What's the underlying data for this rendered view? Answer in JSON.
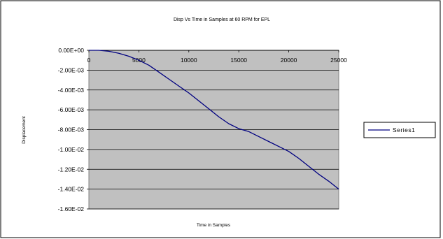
{
  "chart_data": {
    "type": "line",
    "title": "Disp Vs Time in Samples at 60 RPM for EPL",
    "xlabel": "Time in Samples",
    "ylabel": "Displacement",
    "xlim": [
      0,
      25000
    ],
    "ylim": [
      -0.016,
      0
    ],
    "x_ticks": [
      0,
      5000,
      10000,
      15000,
      20000,
      25000
    ],
    "x_tick_labels": [
      "0",
      "5000",
      "10000",
      "15000",
      "20000",
      "25000"
    ],
    "y_ticks": [
      0,
      -0.002,
      -0.004,
      -0.006,
      -0.008,
      -0.01,
      -0.012,
      -0.014,
      -0.016
    ],
    "y_tick_labels": [
      "0.00E+00",
      "-2.00E-03",
      "-4.00E-03",
      "-6.00E-03",
      "-8.00E-03",
      "-1.00E-02",
      "-1.20E-02",
      "-1.40E-02",
      "-1.60E-02"
    ],
    "grid": "horizontal",
    "plot_background": "#c0c0c0",
    "legend_position": "right",
    "series": [
      {
        "name": "Series1",
        "color": "#000080",
        "x": [
          0,
          1000,
          2000,
          3000,
          4000,
          5000,
          6000,
          7000,
          8000,
          9000,
          10000,
          11000,
          12000,
          13000,
          14000,
          15000,
          16000,
          17000,
          18000,
          19000,
          20000,
          21000,
          22000,
          23000,
          24000,
          25000
        ],
        "y": [
          0,
          0,
          -0.0001,
          -0.0003,
          -0.0006,
          -0.001,
          -0.0015,
          -0.0022,
          -0.0029,
          -0.0036,
          -0.0043,
          -0.0051,
          -0.0059,
          -0.0067,
          -0.0074,
          -0.0079,
          -0.0082,
          -0.0087,
          -0.0092,
          -0.0097,
          -0.0102,
          -0.0109,
          -0.0117,
          -0.0125,
          -0.0132,
          -0.014
        ]
      }
    ]
  }
}
